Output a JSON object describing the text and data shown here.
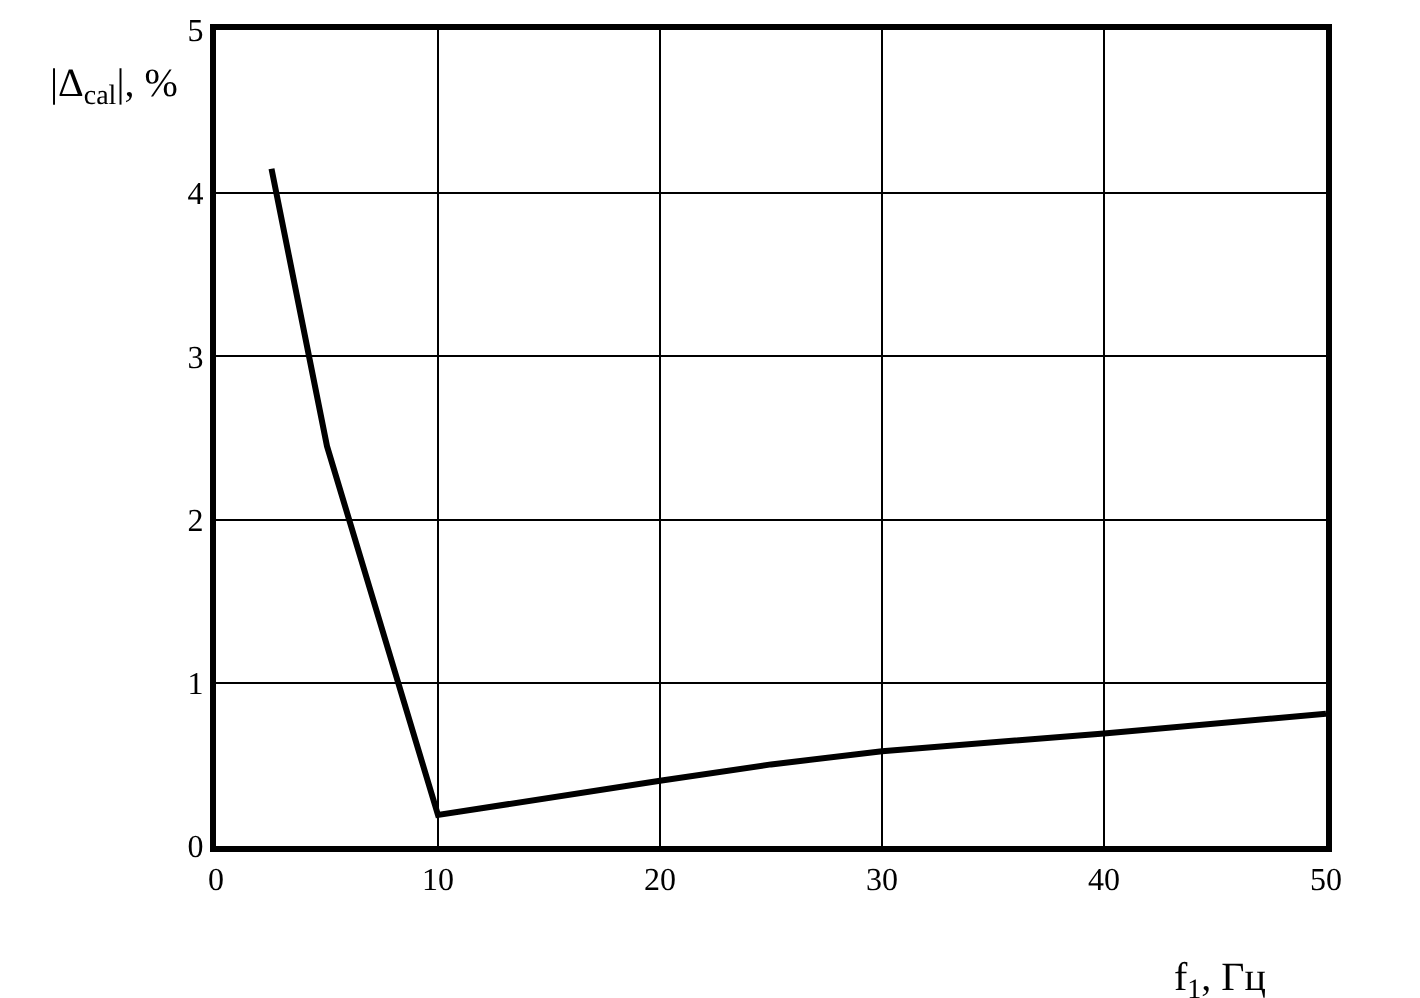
{
  "chart_data": {
    "type": "line",
    "xlabel": "f$_{1}$, Гц",
    "ylabel": "|Δ$_{cal}$|, %",
    "x": [
      2.5,
      5,
      10,
      20,
      25,
      30,
      40,
      50
    ],
    "series": [
      {
        "color": "#000000",
        "values": [
          4.15,
          2.45,
          0.19,
          0.4,
          0.5,
          0.58,
          0.69,
          0.81
        ]
      }
    ],
    "xlim": [
      0,
      50
    ],
    "ylim": [
      0,
      5
    ],
    "xticks": [
      0,
      10,
      20,
      30,
      40,
      50
    ],
    "yticks": [
      0,
      1,
      2,
      3,
      4,
      5
    ],
    "grid": true,
    "marker": "none",
    "line_style": "solid"
  }
}
